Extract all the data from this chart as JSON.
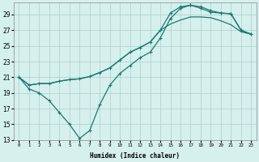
{
  "xlabel": "Humidex (Indice chaleur)",
  "bg_color": "#d6f0ee",
  "grid_color": "#aacfcc",
  "line_color": "#1a7a6e",
  "xlim": [
    -0.5,
    23.5
  ],
  "ylim": [
    13,
    30.5
  ],
  "xticks": [
    0,
    1,
    2,
    3,
    4,
    5,
    6,
    7,
    8,
    9,
    10,
    11,
    12,
    13,
    14,
    15,
    16,
    17,
    18,
    19,
    20,
    21,
    22,
    23
  ],
  "yticks": [
    13,
    15,
    17,
    19,
    21,
    23,
    25,
    27,
    29
  ],
  "line1_x": [
    0,
    1,
    2,
    3,
    4,
    5,
    6,
    7,
    8,
    9,
    10,
    11,
    12,
    13,
    14,
    15,
    16,
    17,
    18,
    19,
    20,
    21,
    22,
    23
  ],
  "line1_y": [
    21,
    19.5,
    19,
    18,
    16.5,
    15,
    13.2,
    14.2,
    17.5,
    20,
    21.5,
    22.5,
    23.5,
    24.2,
    26.0,
    28.5,
    29.8,
    30.2,
    29.8,
    29.3,
    29.2,
    29.1,
    27.0,
    26.5
  ],
  "line2_x": [
    0,
    1,
    2,
    3,
    4,
    5,
    6,
    7,
    8,
    9,
    10,
    11,
    12,
    13,
    14,
    15,
    16,
    17,
    18,
    19,
    20,
    21,
    22,
    23
  ],
  "line2_y": [
    21,
    20,
    20.2,
    20.2,
    20.5,
    20.7,
    20.8,
    21.1,
    21.6,
    22.2,
    23.2,
    24.2,
    24.8,
    25.5,
    27.0,
    29.2,
    30.0,
    30.2,
    30.0,
    29.5,
    29.2,
    29.1,
    27.0,
    26.5
  ],
  "line3_x": [
    0,
    1,
    2,
    3,
    4,
    5,
    6,
    7,
    8,
    9,
    10,
    11,
    12,
    13,
    14,
    15,
    16,
    17,
    18,
    19,
    20,
    21,
    22,
    23
  ],
  "line3_y": [
    21,
    20,
    20.2,
    20.2,
    20.5,
    20.7,
    20.8,
    21.1,
    21.6,
    22.2,
    23.2,
    24.2,
    24.8,
    25.5,
    27.0,
    27.8,
    28.3,
    28.7,
    28.7,
    28.6,
    28.2,
    27.7,
    26.8,
    26.5
  ]
}
